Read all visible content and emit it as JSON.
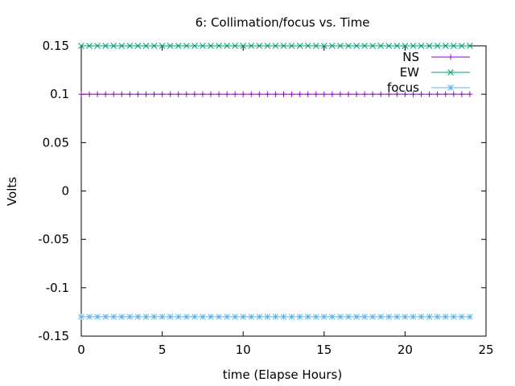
{
  "chart_data": {
    "type": "line",
    "title": "6: Collimation/focus vs. Time",
    "xlabel": "time (Elapse Hours)",
    "ylabel": "Volts",
    "xlim": [
      0,
      25
    ],
    "ylim": [
      -0.15,
      0.15
    ],
    "x_ticks": [
      0,
      5,
      10,
      15,
      20,
      25
    ],
    "y_ticks": [
      -0.15,
      -0.1,
      -0.05,
      0,
      0.05,
      0.1,
      0.15
    ],
    "x_tick_labels": [
      "0",
      "5",
      "10",
      "15",
      "20",
      "25"
    ],
    "y_tick_labels": [
      "-0.15",
      "-0.1",
      "-0.05",
      "0",
      "0.05",
      "0.1",
      "0.15"
    ],
    "legend_position": "top-right",
    "grid": false,
    "x": [
      0,
      0.5,
      1,
      1.5,
      2,
      2.5,
      3,
      3.5,
      4,
      4.5,
      5,
      5.5,
      6,
      6.5,
      7,
      7.5,
      8,
      8.5,
      9,
      9.5,
      10,
      10.5,
      11,
      11.5,
      12,
      12.5,
      13,
      13.5,
      14,
      14.5,
      15,
      15.5,
      16,
      16.5,
      17,
      17.5,
      18,
      18.5,
      19,
      19.5,
      20,
      20.5,
      21,
      21.5,
      22,
      22.5,
      23,
      23.5,
      24
    ],
    "series": [
      {
        "name": "NS",
        "color": "#9400d3",
        "marker": "plus",
        "value": 0.1
      },
      {
        "name": "EW",
        "color": "#009e73",
        "marker": "cross",
        "value": 0.15
      },
      {
        "name": "focus",
        "color": "#56b4e9",
        "marker": "star",
        "value": -0.13
      }
    ]
  }
}
